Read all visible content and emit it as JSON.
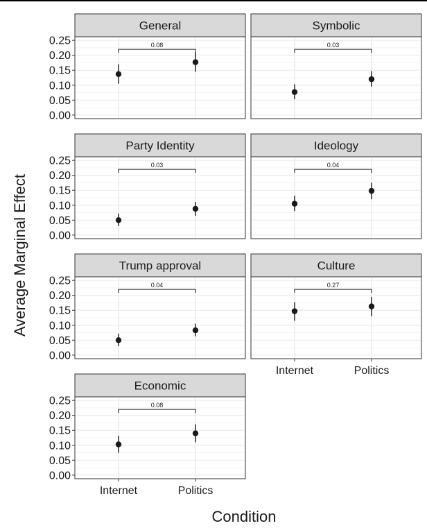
{
  "chart_data": {
    "type": "scatter",
    "subtype": "faceted point-range",
    "xlabel": "Condition",
    "ylabel": "Average Marginal Effect",
    "categories": [
      "Internet",
      "Politics"
    ],
    "y_ticks": [
      "0.00",
      "0.05",
      "0.10",
      "0.15",
      "0.20",
      "0.25"
    ],
    "ylim": [
      0,
      0.25
    ],
    "grid": true,
    "colors": {
      "strip_fill": "#d9d9d9",
      "strip_border": "#333333",
      "grid": "#ebebeb",
      "point": "#1a1a1a"
    },
    "panels": [
      {
        "title": "General",
        "values": [
          0.137,
          0.177
        ],
        "lower": [
          0.105,
          0.145
        ],
        "upper": [
          0.17,
          0.21
        ],
        "pvalue": "0.08"
      },
      {
        "title": "Symbolic",
        "values": [
          0.077,
          0.12
        ],
        "lower": [
          0.053,
          0.095
        ],
        "upper": [
          0.103,
          0.147
        ],
        "pvalue": "0.03"
      },
      {
        "title": "Party Identity",
        "values": [
          0.05,
          0.088
        ],
        "lower": [
          0.03,
          0.065
        ],
        "upper": [
          0.072,
          0.111
        ],
        "pvalue": "0.03"
      },
      {
        "title": "Ideology",
        "values": [
          0.105,
          0.148
        ],
        "lower": [
          0.08,
          0.12
        ],
        "upper": [
          0.132,
          0.175
        ],
        "pvalue": "0.04"
      },
      {
        "title": "Trump approval",
        "values": [
          0.05,
          0.083
        ],
        "lower": [
          0.03,
          0.063
        ],
        "upper": [
          0.072,
          0.105
        ],
        "pvalue": "0.04"
      },
      {
        "title": "Culture",
        "values": [
          0.147,
          0.163
        ],
        "lower": [
          0.115,
          0.13
        ],
        "upper": [
          0.177,
          0.195
        ],
        "pvalue": "0.27"
      },
      {
        "title": "Economic",
        "values": [
          0.103,
          0.14
        ],
        "lower": [
          0.075,
          0.11
        ],
        "upper": [
          0.132,
          0.17
        ],
        "pvalue": "0.08"
      }
    ]
  }
}
